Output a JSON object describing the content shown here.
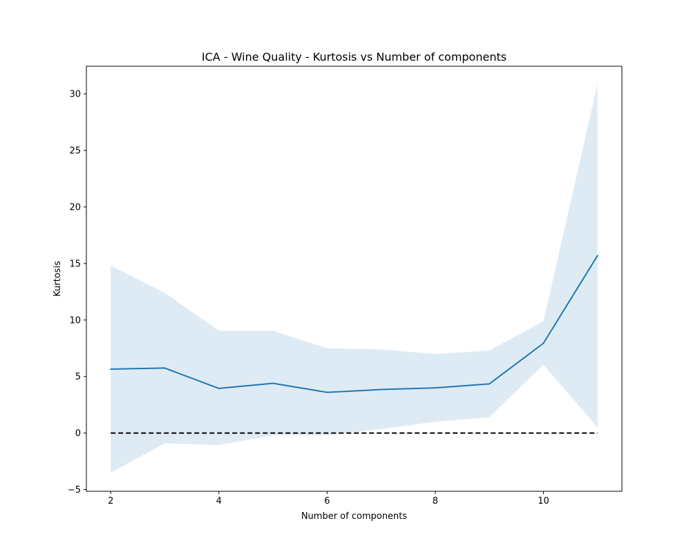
{
  "chart_data": {
    "type": "line",
    "title": "ICA - Wine Quality - Kurtosis vs Number of components",
    "xlabel": "Number of components",
    "ylabel": "Kurtosis",
    "xlim": [
      1.55,
      11.45
    ],
    "ylim": [
      -5.15,
      32.45
    ],
    "x_ticks": [
      2,
      4,
      6,
      8,
      10
    ],
    "y_ticks": [
      -5,
      0,
      5,
      10,
      15,
      20,
      25,
      30
    ],
    "x_tick_labels": [
      "2",
      "4",
      "6",
      "8",
      "10"
    ],
    "y_tick_labels": [
      "−5",
      "0",
      "5",
      "10",
      "15",
      "20",
      "25",
      "30"
    ],
    "grid": false,
    "x": [
      2,
      3,
      4,
      5,
      6,
      7,
      8,
      9,
      10,
      11
    ],
    "series": [
      {
        "values": [
          5.65,
          5.75,
          3.95,
          4.4,
          3.6,
          3.85,
          4.0,
          4.35,
          7.95,
          15.7
        ],
        "color": "#1f77b4"
      }
    ],
    "band": {
      "lower": [
        -3.5,
        -0.9,
        -1.05,
        -0.2,
        -0.2,
        0.35,
        1.0,
        1.4,
        6.05,
        0.5
      ],
      "upper": [
        14.8,
        12.4,
        9.05,
        9.05,
        7.5,
        7.4,
        7.0,
        7.3,
        9.9,
        30.9
      ],
      "color": "#1f77b4",
      "alpha": 0.15
    },
    "reference_line": {
      "y": 0,
      "x_range": [
        2,
        11
      ],
      "style": "dashed",
      "color": "#000000"
    }
  }
}
